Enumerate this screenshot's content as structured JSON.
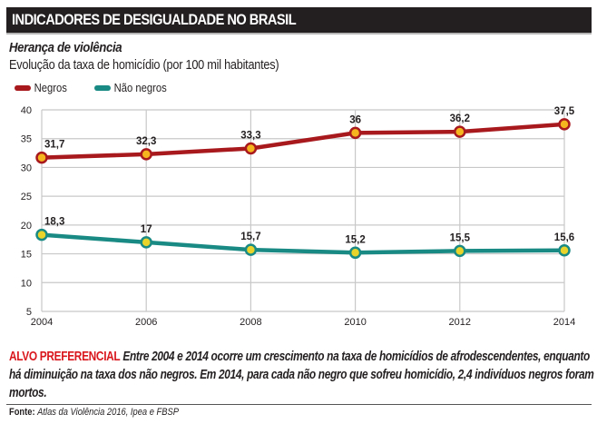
{
  "header": {
    "title": "INDICADORES DE DESIGUALDADE NO BRASIL"
  },
  "subtitle": "Herança de violência",
  "description": "Evolução da taxa de homicídio (por 100 mil habitantes)",
  "legend": [
    {
      "label": "Negros",
      "color": "#a8191e"
    },
    {
      "label": "Não negros",
      "color": "#1a8a84"
    }
  ],
  "colors": {
    "negros_line": "#a8191e",
    "negros_marker_fill": "#f5b51e",
    "nao_negros_line": "#1a8a84",
    "nao_negros_marker_fill": "#e8d42a",
    "grid": "#c8c8c8",
    "highlight": "#d9161c"
  },
  "chart_data": {
    "type": "line",
    "title": "Herança de violência",
    "subtitle": "Evolução da taxa de homicídio (por 100 mil habitantes)",
    "xlabel": "",
    "ylabel": "",
    "x": [
      2004,
      2006,
      2008,
      2010,
      2012,
      2014
    ],
    "x_tick_labels": [
      "2004",
      "2006",
      "2008",
      "2010",
      "2012",
      "2014"
    ],
    "y_ticks": [
      5,
      10,
      15,
      20,
      25,
      30,
      35,
      40
    ],
    "y_tick_labels": [
      "5",
      "10",
      "15",
      "20",
      "25",
      "30",
      "35",
      "40"
    ],
    "ylim": [
      5,
      40
    ],
    "xlim": [
      2004,
      2014
    ],
    "grid": true,
    "legend_position": "top-left",
    "series": [
      {
        "name": "Negros",
        "values": [
          31.7,
          32.3,
          33.3,
          36,
          36.2,
          37.5
        ],
        "labels": [
          "31,7",
          "32,3",
          "33,3",
          "36",
          "36,2",
          "37,5"
        ]
      },
      {
        "name": "Não negros",
        "values": [
          18.3,
          17,
          15.7,
          15.2,
          15.5,
          15.6
        ],
        "labels": [
          "18,3",
          "17",
          "15,7",
          "15,2",
          "15,5",
          "15,6"
        ]
      }
    ]
  },
  "body": {
    "highlight": "ALVO PREFERENCIAL",
    "text": "Entre 2004 e 2014 ocorre um crescimento na taxa de homicídios de afrodescendentes, enquanto há diminuição na taxa dos não negros. Em 2014, para cada não negro que sofreu homicídio, 2,4 indivíduos negros foram mortos."
  },
  "source": {
    "label": "Fonte:",
    "text": "Atlas da Violência 2016, Ipea e FBSP"
  }
}
